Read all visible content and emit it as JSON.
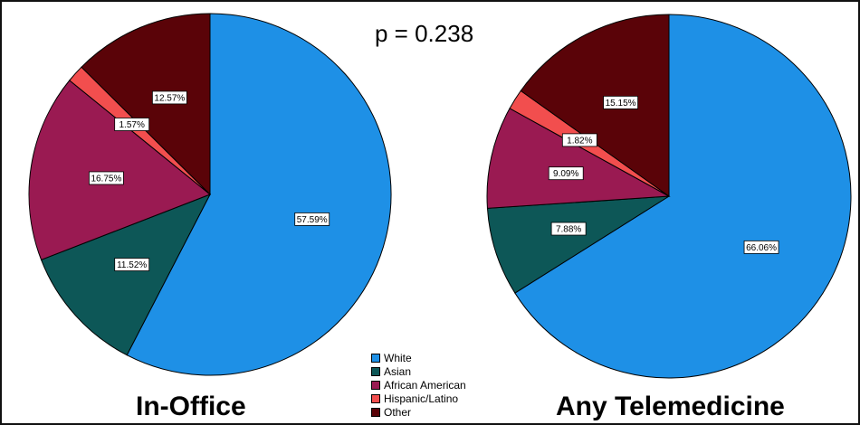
{
  "p_value_text": "p = 0.238",
  "chart_data": [
    {
      "type": "pie",
      "title": "In-Office",
      "categories": [
        "White",
        "Asian",
        "African American",
        "Hispanic/Latino",
        "Other"
      ],
      "values": [
        57.59,
        11.52,
        16.75,
        1.57,
        12.57
      ],
      "labels": [
        "57.59%",
        "11.52%",
        "16.75%",
        "1.57%",
        "12.57%"
      ]
    },
    {
      "type": "pie",
      "title": "Any Telemedicine",
      "categories": [
        "White",
        "Asian",
        "African American",
        "Hispanic/Latino",
        "Other"
      ],
      "values": [
        66.06,
        7.88,
        9.09,
        1.82,
        15.15
      ],
      "labels": [
        "66.06%",
        "7.88%",
        "9.09%",
        "1.82%",
        "15.15%"
      ]
    }
  ],
  "legend": [
    {
      "label": "White",
      "color": "#1e90e6"
    },
    {
      "label": "Asian",
      "color": "#0d5757"
    },
    {
      "label": "African American",
      "color": "#9a1a52"
    },
    {
      "label": "Hispanic/Latino",
      "color": "#f24e4e"
    },
    {
      "label": "Other",
      "color": "#5a0308"
    }
  ]
}
